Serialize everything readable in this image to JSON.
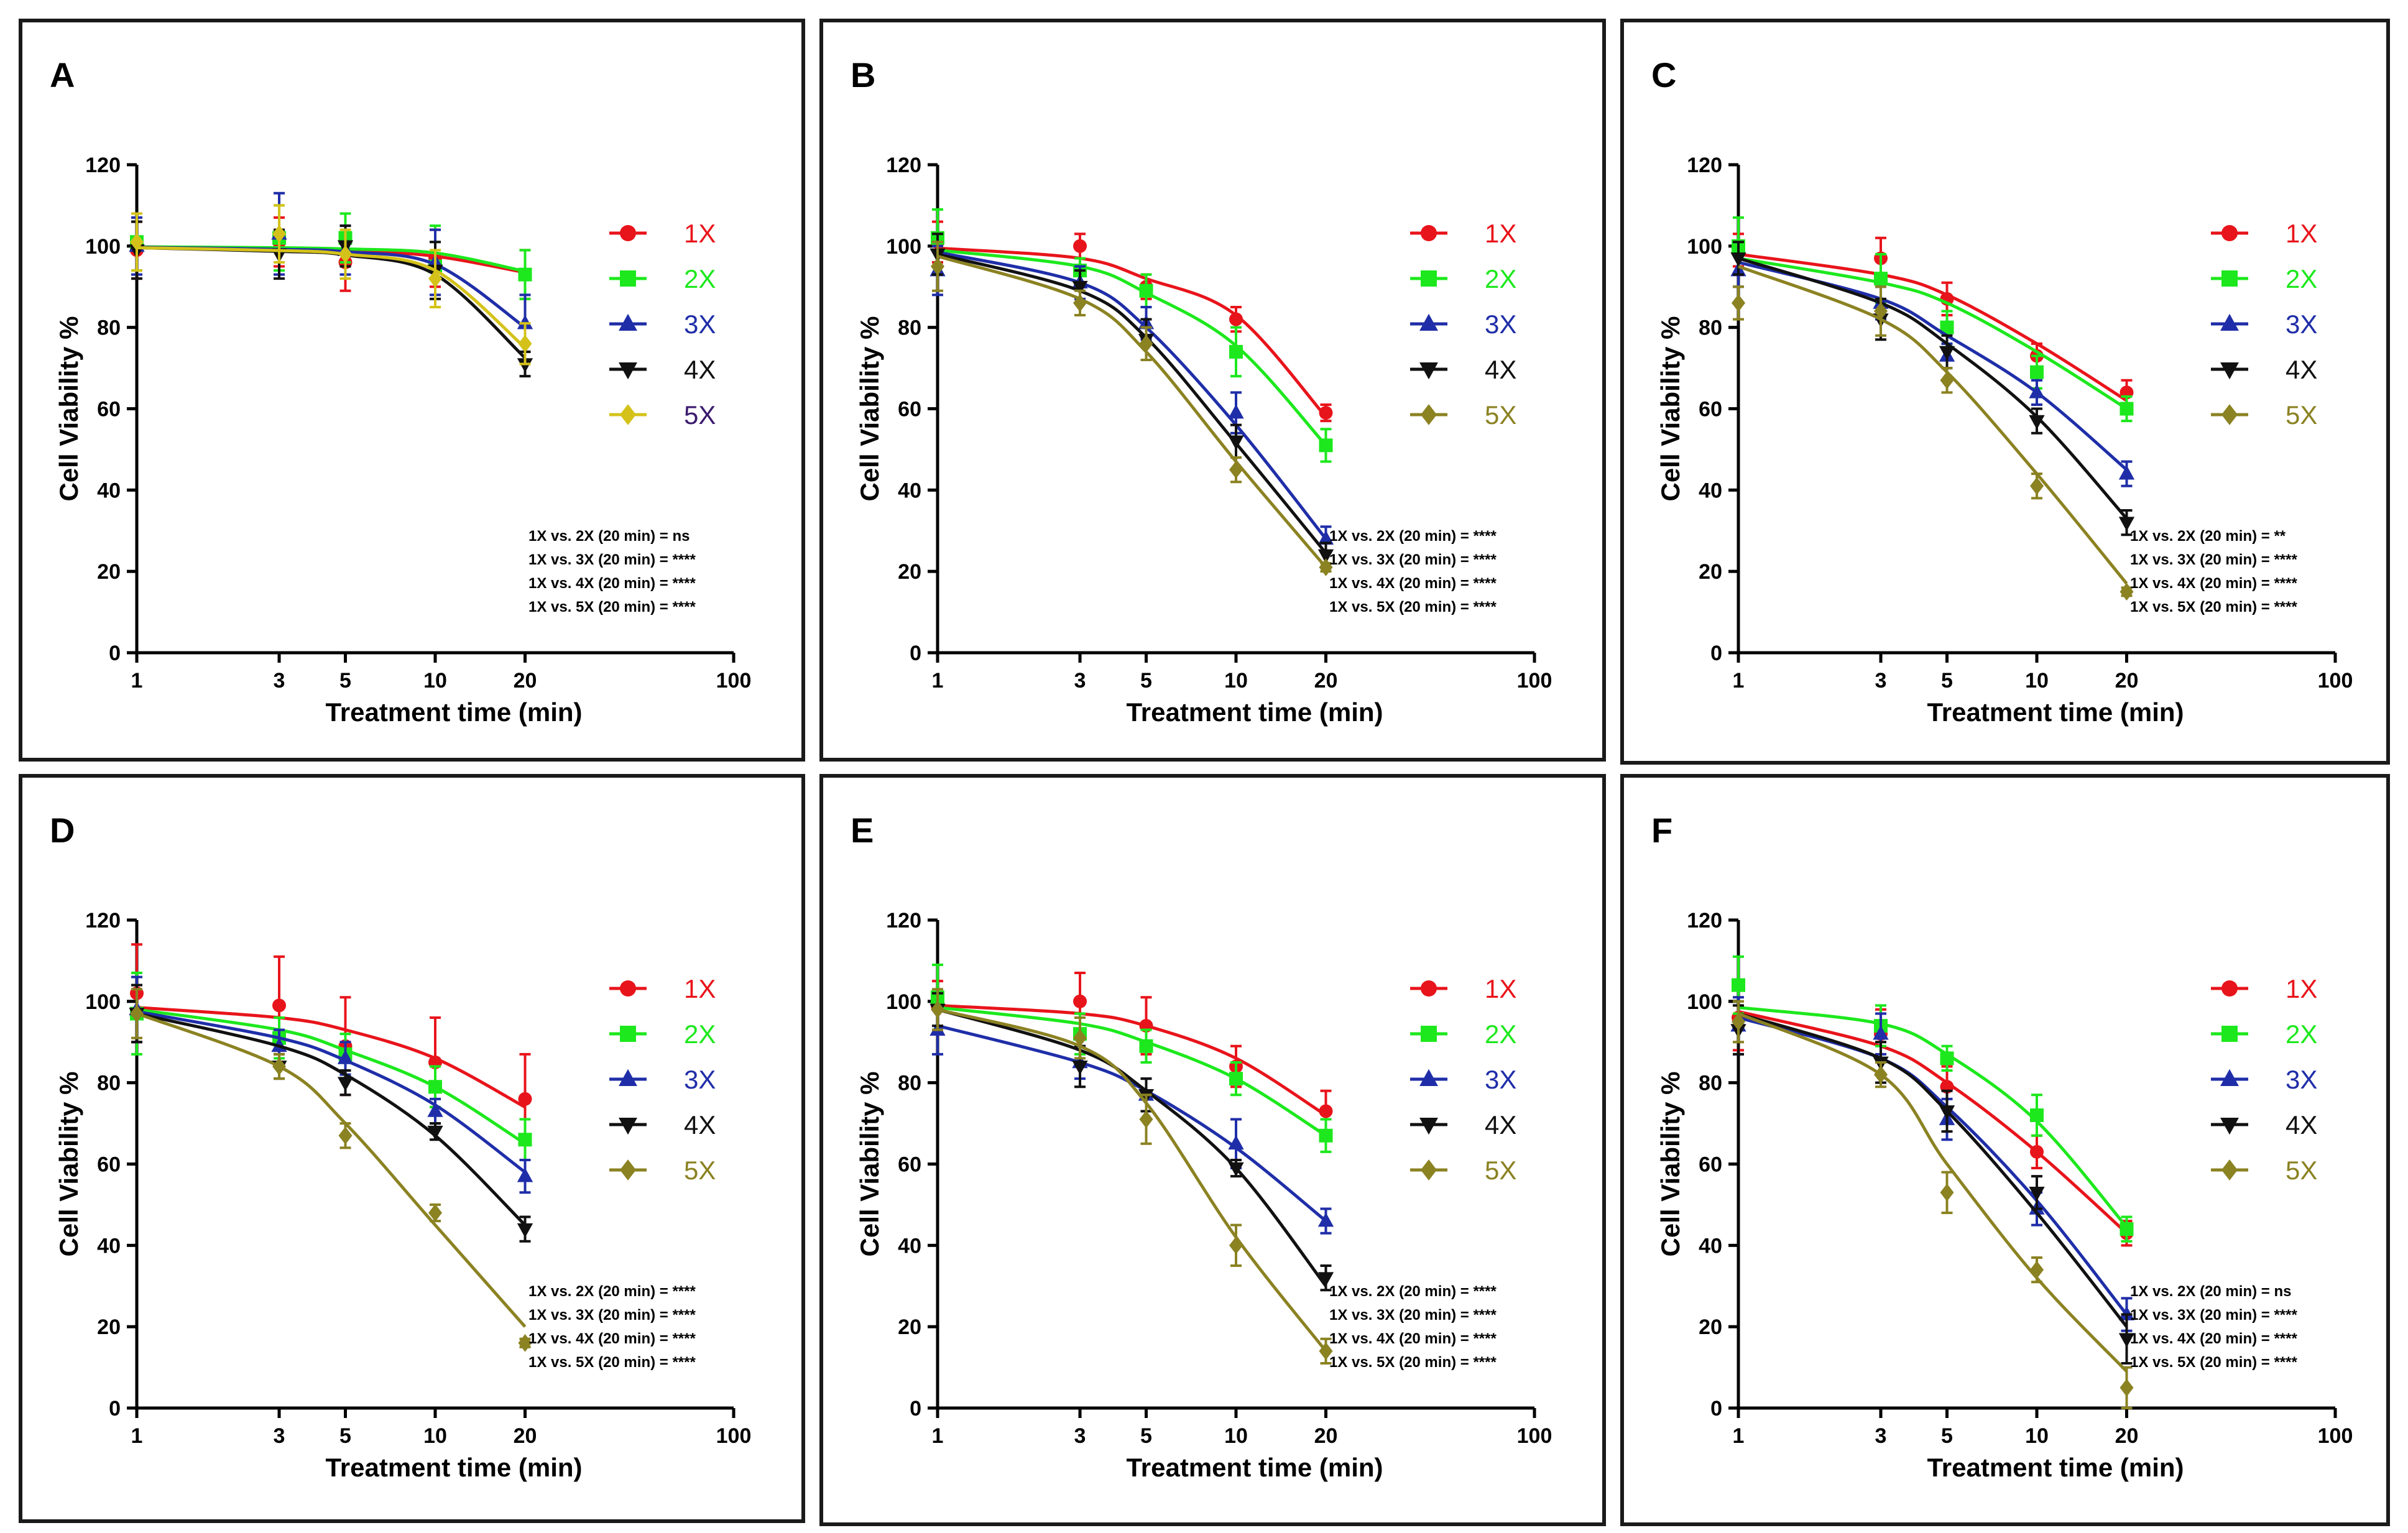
{
  "figure": {
    "panels": [
      "A",
      "B",
      "C",
      "D",
      "E",
      "F"
    ]
  },
  "chart_data": [
    {
      "panel": "A",
      "type": "line",
      "x_scale": "log",
      "xlabel": "Treatment time (min)",
      "ylabel": "Cell Viability %",
      "x_ticks": [
        "1",
        "3",
        "5",
        "10",
        "20",
        "100"
      ],
      "x_tick_values": [
        1,
        3,
        5,
        10,
        20,
        100
      ],
      "y_ticks": [
        "0",
        "20",
        "40",
        "60",
        "80",
        "100",
        "120"
      ],
      "ylim": [
        0,
        120
      ],
      "xlim": [
        1,
        100
      ],
      "x": [
        1,
        3,
        5,
        10,
        20
      ],
      "series": [
        {
          "name": "1X",
          "color": "#e8141b",
          "marker": "circle",
          "values": [
            99,
            101,
            96,
            97,
            93
          ],
          "errors": [
            7,
            6,
            7,
            7,
            6
          ],
          "fit": [
            99.8,
            99.5,
            99.0,
            97.5,
            93.5
          ]
        },
        {
          "name": "2X",
          "color": "#1de81d",
          "marker": "square",
          "values": [
            101,
            102,
            102,
            95,
            93
          ],
          "errors": [
            7,
            8,
            6,
            10,
            6
          ],
          "fit": [
            99.8,
            99.6,
            99.3,
            98.3,
            93.8
          ]
        },
        {
          "name": "3X",
          "color": "#1f2ea8",
          "marker": "triangle-up",
          "values": [
            100,
            103,
            99,
            96,
            81
          ],
          "errors": [
            7,
            10,
            6,
            8,
            7
          ],
          "fit": [
            99.7,
            99.2,
            98.6,
            95.5,
            80.0
          ]
        },
        {
          "name": "4X",
          "color": "#111111",
          "marker": "triangle-down",
          "values": [
            99,
            98,
            100,
            94,
            71
          ],
          "errors": [
            7,
            6,
            5,
            7,
            3
          ],
          "fit": [
            99.6,
            98.7,
            97.8,
            93.0,
            72.5
          ]
        },
        {
          "name": "5X",
          "color": "#d4c21a",
          "marker": "diamond",
          "values": [
            101,
            103,
            98,
            92,
            76
          ],
          "errors": [
            7,
            7,
            6,
            7,
            5
          ],
          "fit": [
            99.6,
            98.9,
            98.0,
            94.0,
            75.0
          ]
        }
      ],
      "annotations": [
        "1X vs. 2X (20 min) = ns",
        "1X vs. 3X (20 min) = ****",
        "1X vs. 4X (20 min) = ****",
        "1X vs. 5X (20 min) = ****"
      ]
    },
    {
      "panel": "B",
      "type": "line",
      "x_scale": "log",
      "xlabel": "Treatment time (min)",
      "ylabel": "Cell Viability %",
      "x_ticks": [
        "1",
        "3",
        "5",
        "10",
        "20",
        "100"
      ],
      "x_tick_values": [
        1,
        3,
        5,
        10,
        20,
        100
      ],
      "y_ticks": [
        "0",
        "20",
        "40",
        "60",
        "80",
        "100",
        "120"
      ],
      "ylim": [
        0,
        120
      ],
      "xlim": [
        1,
        100
      ],
      "x": [
        1,
        3,
        5,
        10,
        20
      ],
      "series": [
        {
          "name": "1X",
          "color": "#e8141b",
          "marker": "circle",
          "values": [
            101,
            100,
            90,
            82,
            59
          ],
          "errors": [
            5,
            3,
            3,
            3,
            2
          ],
          "fit": [
            99.5,
            97.0,
            92.0,
            83.0,
            58.0
          ]
        },
        {
          "name": "2X",
          "color": "#1de81d",
          "marker": "square",
          "values": [
            102,
            94,
            89,
            74,
            51
          ],
          "errors": [
            7,
            3,
            4,
            6,
            4
          ],
          "fit": [
            99.0,
            95.0,
            88.5,
            75.5,
            51.0
          ]
        },
        {
          "name": "3X",
          "color": "#1f2ea8",
          "marker": "triangle-up",
          "values": [
            94,
            91,
            81,
            59,
            28
          ],
          "errors": [
            6,
            4,
            4,
            5,
            3
          ],
          "fit": [
            98.5,
            91.0,
            80.0,
            56.0,
            28.0
          ]
        },
        {
          "name": "4X",
          "color": "#111111",
          "marker": "triangle-down",
          "values": [
            98,
            90,
            77,
            52,
            24
          ],
          "errors": [
            5,
            4,
            5,
            4,
            3
          ],
          "fit": [
            98.0,
            89.0,
            77.5,
            51.5,
            24.5
          ]
        },
        {
          "name": "5X",
          "color": "#8b8222",
          "marker": "diamond",
          "values": [
            95,
            86,
            76,
            45,
            21
          ],
          "errors": [
            6,
            3,
            4,
            3,
            1
          ],
          "fit": [
            97.5,
            87.0,
            74.0,
            47.0,
            21.0
          ]
        }
      ],
      "annotations": [
        "1X vs. 2X (20 min) = ****",
        "1X vs. 3X (20 min) = ****",
        "1X vs. 4X (20 min) = ****",
        "1X vs. 5X (20 min) = ****"
      ]
    },
    {
      "panel": "C",
      "type": "line",
      "x_scale": "log",
      "xlabel": "Treatment time (min)",
      "ylabel": "Cell Viability %",
      "x_ticks": [
        "1",
        "3",
        "5",
        "10",
        "20",
        "100"
      ],
      "x_tick_values": [
        1,
        3,
        5,
        10,
        20,
        100
      ],
      "y_ticks": [
        "0",
        "20",
        "40",
        "60",
        "80",
        "100",
        "120"
      ],
      "ylim": [
        0,
        120
      ],
      "xlim": [
        1,
        100
      ],
      "x": [
        1,
        3,
        5,
        10,
        20
      ],
      "series": [
        {
          "name": "1X",
          "color": "#e8141b",
          "marker": "circle",
          "values": [
            99,
            97,
            87,
            73,
            64
          ],
          "errors": [
            4,
            5,
            4,
            3,
            3
          ],
          "fit": [
            98.0,
            93.0,
            88.0,
            76.0,
            62.0
          ]
        },
        {
          "name": "2X",
          "color": "#1de81d",
          "marker": "square",
          "values": [
            100,
            92,
            80,
            69,
            60
          ],
          "errors": [
            7,
            6,
            4,
            4,
            3
          ],
          "fit": [
            97.0,
            91.0,
            86.0,
            74.0,
            60.0
          ]
        },
        {
          "name": "3X",
          "color": "#1f2ea8",
          "marker": "triangle-up",
          "values": [
            94,
            86,
            73,
            64,
            44
          ],
          "errors": [
            4,
            4,
            3,
            3,
            3
          ],
          "fit": [
            96.0,
            87.0,
            78.0,
            64.0,
            45.0
          ]
        },
        {
          "name": "4X",
          "color": "#111111",
          "marker": "triangle-down",
          "values": [
            97,
            82,
            74,
            57,
            32
          ],
          "errors": [
            4,
            5,
            4,
            3,
            3
          ],
          "fit": [
            97.0,
            86.0,
            76.0,
            58.0,
            33.0
          ]
        },
        {
          "name": "5X",
          "color": "#8b8222",
          "marker": "diamond",
          "values": [
            86,
            84,
            67,
            41,
            15
          ],
          "errors": [
            4,
            6,
            3,
            3,
            1
          ],
          "fit": [
            95.0,
            82.0,
            69.0,
            44.0,
            17.0
          ]
        }
      ],
      "annotations": [
        "1X vs. 2X (20 min) = **",
        "1X vs. 3X (20 min) = ****",
        "1X vs. 4X (20 min) = ****",
        "1X vs. 5X (20 min) = ****"
      ]
    },
    {
      "panel": "D",
      "type": "line",
      "x_scale": "log",
      "xlabel": "Treatment time (min)",
      "ylabel": "Cell Viability %",
      "x_ticks": [
        "1",
        "3",
        "5",
        "10",
        "20",
        "100"
      ],
      "x_tick_values": [
        1,
        3,
        5,
        10,
        20,
        100
      ],
      "y_ticks": [
        "0",
        "20",
        "40",
        "60",
        "80",
        "100",
        "120"
      ],
      "ylim": [
        0,
        120
      ],
      "xlim": [
        1,
        100
      ],
      "x": [
        1,
        3,
        5,
        10,
        20
      ],
      "series": [
        {
          "name": "1X",
          "color": "#e8141b",
          "marker": "circle",
          "values": [
            102,
            99,
            89,
            85,
            76
          ],
          "errors": [
            12,
            12,
            12,
            11,
            11
          ],
          "fit": [
            98.5,
            96.0,
            93.0,
            86.0,
            74.0
          ]
        },
        {
          "name": "2X",
          "color": "#1de81d",
          "marker": "square",
          "values": [
            97,
            91,
            87,
            79,
            66
          ],
          "errors": [
            10,
            5,
            5,
            5,
            5
          ],
          "fit": [
            98.0,
            93.0,
            88.0,
            79.0,
            65.0
          ]
        },
        {
          "name": "3X",
          "color": "#1f2ea8",
          "marker": "triangle-up",
          "values": [
            98,
            89,
            86,
            73,
            57
          ],
          "errors": [
            8,
            4,
            4,
            3,
            4
          ],
          "fit": [
            97.5,
            91.0,
            85.5,
            74.5,
            58.0
          ]
        },
        {
          "name": "4X",
          "color": "#111111",
          "marker": "triangle-down",
          "values": [
            97,
            84,
            80,
            68,
            44
          ],
          "errors": [
            7,
            3,
            3,
            2,
            3
          ],
          "fit": [
            97.0,
            89.0,
            82.0,
            67.0,
            45.0
          ]
        },
        {
          "name": "5X",
          "color": "#8b8222",
          "marker": "diamond",
          "values": [
            97,
            84,
            67,
            48,
            16
          ],
          "errors": [
            6,
            3,
            3,
            2,
            1
          ],
          "fit": [
            97.0,
            84.0,
            70.0,
            45.0,
            20.0
          ]
        }
      ],
      "annotations": [
        "1X vs. 2X (20 min) = ****",
        "1X vs. 3X (20 min) = ****",
        "1X vs. 4X (20 min) = ****",
        "1X vs. 5X (20 min) = ****"
      ]
    },
    {
      "panel": "E",
      "type": "line",
      "x_scale": "log",
      "xlabel": "Treatment time (min)",
      "ylabel": "Cell Viability %",
      "x_ticks": [
        "1",
        "3",
        "5",
        "10",
        "20",
        "100"
      ],
      "x_tick_values": [
        1,
        3,
        5,
        10,
        20,
        100
      ],
      "y_ticks": [
        "0",
        "20",
        "40",
        "60",
        "80",
        "100",
        "120"
      ],
      "ylim": [
        0,
        120
      ],
      "xlim": [
        1,
        100
      ],
      "x": [
        1,
        3,
        5,
        10,
        20
      ],
      "series": [
        {
          "name": "1X",
          "color": "#e8141b",
          "marker": "circle",
          "values": [
            99,
            100,
            94,
            84,
            73
          ],
          "errors": [
            6,
            7,
            7,
            5,
            5
          ],
          "fit": [
            99.0,
            97.0,
            94.0,
            86.0,
            72.0
          ]
        },
        {
          "name": "2X",
          "color": "#1de81d",
          "marker": "square",
          "values": [
            101,
            92,
            89,
            81,
            67
          ],
          "errors": [
            8,
            5,
            4,
            4,
            4
          ],
          "fit": [
            98.5,
            94.5,
            90.0,
            81.0,
            67.0
          ]
        },
        {
          "name": "3X",
          "color": "#1f2ea8",
          "marker": "triangle-up",
          "values": [
            93,
            85,
            77,
            65,
            46
          ],
          "errors": [
            6,
            4,
            4,
            6,
            3
          ],
          "fit": [
            94.0,
            85.0,
            78.0,
            64.0,
            46.0
          ]
        },
        {
          "name": "4X",
          "color": "#111111",
          "marker": "triangle-down",
          "values": [
            98,
            84,
            77,
            59,
            32
          ],
          "errors": [
            4,
            5,
            4,
            2,
            3
          ],
          "fit": [
            98.0,
            88.0,
            78.0,
            59.0,
            30.0
          ]
        },
        {
          "name": "5X",
          "color": "#8b8222",
          "marker": "diamond",
          "values": [
            98,
            91,
            71,
            40,
            14
          ],
          "errors": [
            5,
            5,
            6,
            5,
            3
          ],
          "fit": [
            98.0,
            89.0,
            75.0,
            42.0,
            14.0
          ]
        }
      ],
      "annotations": [
        "1X vs. 2X (20 min) = ****",
        "1X vs. 3X (20 min) = ****",
        "1X vs. 4X (20 min) = ****",
        "1X vs. 5X (20 min) = ****"
      ]
    },
    {
      "panel": "F",
      "type": "line",
      "x_scale": "log",
      "xlabel": "Treatment time (min)",
      "ylabel": "Cell Viability %",
      "x_ticks": [
        "1",
        "3",
        "5",
        "10",
        "20",
        "100"
      ],
      "x_tick_values": [
        1,
        3,
        5,
        10,
        20,
        100
      ],
      "y_ticks": [
        "0",
        "20",
        "40",
        "60",
        "80",
        "100",
        "120"
      ],
      "ylim": [
        0,
        120
      ],
      "xlim": [
        1,
        100
      ],
      "x": [
        1,
        3,
        5,
        10,
        20
      ],
      "series": [
        {
          "name": "1X",
          "color": "#e8141b",
          "marker": "circle",
          "values": [
            96,
            92,
            79,
            63,
            43
          ],
          "errors": [
            8,
            6,
            5,
            4,
            3
          ],
          "fit": [
            97.5,
            89.0,
            80.0,
            63.0,
            43.0
          ]
        },
        {
          "name": "2X",
          "color": "#1de81d",
          "marker": "square",
          "values": [
            104,
            94,
            86,
            72,
            44
          ],
          "errors": [
            7,
            5,
            3,
            5,
            3
          ],
          "fit": [
            98.5,
            94.5,
            87.0,
            70.5,
            44.5
          ]
        },
        {
          "name": "3X",
          "color": "#1f2ea8",
          "marker": "triangle-up",
          "values": [
            94,
            92,
            71,
            49,
            23
          ],
          "errors": [
            7,
            5,
            5,
            4,
            4
          ],
          "fit": [
            96.0,
            86.0,
            74.0,
            51.0,
            23.0
          ]
        },
        {
          "name": "4X",
          "color": "#111111",
          "marker": "triangle-down",
          "values": [
            93,
            85,
            73,
            53,
            17
          ],
          "errors": [
            6,
            5,
            5,
            4,
            6
          ],
          "fit": [
            97.0,
            86.0,
            73.0,
            48.0,
            20.0
          ]
        },
        {
          "name": "5X",
          "color": "#8b8222",
          "marker": "diamond",
          "values": [
            95,
            82,
            53,
            34,
            5
          ],
          "errors": [
            5,
            3,
            5,
            3,
            5
          ],
          "fit": [
            97.0,
            82.0,
            60.0,
            32.0,
            9.0
          ]
        }
      ],
      "annotations": [
        "1X vs. 2X (20 min) = ns",
        "1X vs. 3X (20 min) = ****",
        "1X vs. 4X (20 min) = ****",
        "1X vs. 5X (20 min) = ****"
      ]
    }
  ]
}
